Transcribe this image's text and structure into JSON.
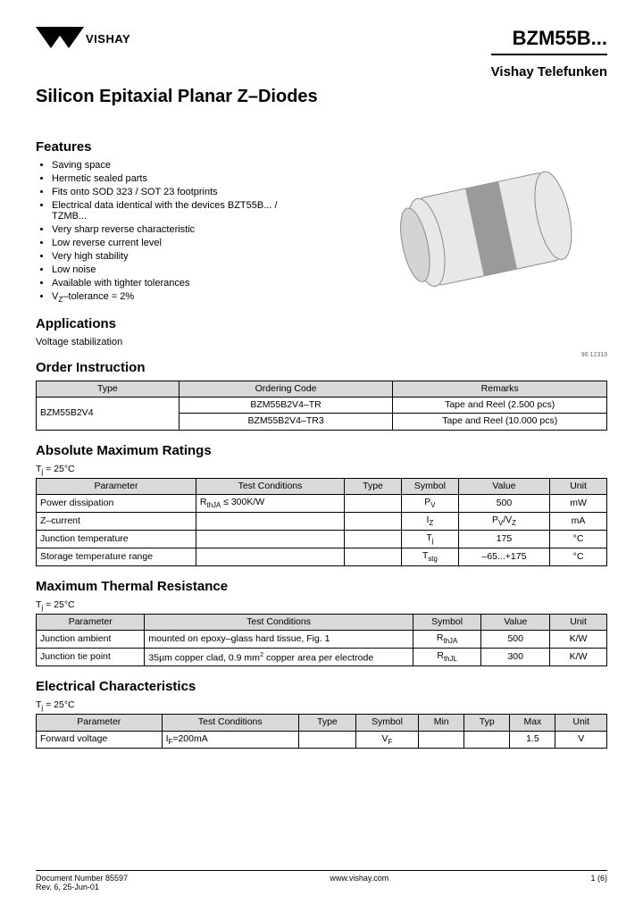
{
  "header": {
    "logo_text": "VISHAY",
    "part_number": "BZM55B...",
    "sub_brand": "Vishay Telefunken"
  },
  "title": "Silicon Epitaxial Planar Z–Diodes",
  "features": {
    "heading": "Features",
    "items": [
      "Saving space",
      "Hermetic sealed parts",
      "Fits onto SOD 323 / SOT 23 footprints",
      "Electrical data identical with the devices BZT55B... / TZMB...",
      "Very sharp reverse characteristic",
      "Low reverse current level",
      "Very high stability",
      "Low noise",
      "Available with tighter tolerances",
      "V_Z–tolerance = 2%"
    ]
  },
  "applications": {
    "heading": "Applications",
    "text": "Voltage stabilization"
  },
  "order": {
    "heading": "Order Instruction",
    "columns": [
      "Type",
      "Ordering Code",
      "Remarks"
    ],
    "type_cell": "BZM55B2V4",
    "rows": [
      {
        "code": "BZM55B2V4–TR",
        "remarks": "Tape and Reel (2.500 pcs)"
      },
      {
        "code": "BZM55B2V4–TR3",
        "remarks": "Tape and Reel (10.000 pcs)"
      }
    ],
    "col_widths": [
      "25%",
      "37.5%",
      "37.5%"
    ]
  },
  "abs_max": {
    "heading": "Absolute Maximum Ratings",
    "condition": "T_j = 25°C",
    "columns": [
      "Parameter",
      "Test Conditions",
      "Type",
      "Symbol",
      "Value",
      "Unit"
    ],
    "rows": [
      {
        "param": "Power dissipation",
        "cond": "R_thJA ≤ 300K/W",
        "type": "",
        "sym": "P_V",
        "val": "500",
        "unit": "mW"
      },
      {
        "param": "Z–current",
        "cond": "",
        "type": "",
        "sym": "I_Z",
        "val": "P_V/V_Z",
        "unit": "mA"
      },
      {
        "param": "Junction temperature",
        "cond": "",
        "type": "",
        "sym": "T_j",
        "val": "175",
        "unit": "°C"
      },
      {
        "param": "Storage temperature range",
        "cond": "",
        "type": "",
        "sym": "T_stg",
        "val": "–65...+175",
        "unit": "°C"
      }
    ],
    "col_widths": [
      "28%",
      "26%",
      "10%",
      "10%",
      "16%",
      "10%"
    ]
  },
  "thermal": {
    "heading": "Maximum Thermal Resistance",
    "condition": "T_j = 25°C",
    "columns": [
      "Parameter",
      "Test Conditions",
      "Symbol",
      "Value",
      "Unit"
    ],
    "rows": [
      {
        "param": "Junction ambient",
        "cond": "mounted on epoxy–glass hard tissue, Fig. 1",
        "sym": "R_thJA",
        "val": "500",
        "unit": "K/W"
      },
      {
        "param": "Junction tie point",
        "cond": "35µm copper clad, 0.9 mm² copper area per electrode",
        "sym": "R_thJL",
        "val": "300",
        "unit": "K/W"
      }
    ],
    "col_widths": [
      "19%",
      "47%",
      "12%",
      "12%",
      "10%"
    ]
  },
  "elec": {
    "heading": "Electrical Characteristics",
    "condition": "T_j = 25°C",
    "columns": [
      "Parameter",
      "Test Conditions",
      "Type",
      "Symbol",
      "Min",
      "Typ",
      "Max",
      "Unit"
    ],
    "rows": [
      {
        "param": "Forward voltage",
        "cond": "I_F=200mA",
        "type": "",
        "sym": "V_F",
        "min": "",
        "typ": "",
        "max": "1.5",
        "unit": "V"
      }
    ],
    "col_widths": [
      "22%",
      "24%",
      "10%",
      "11%",
      "8%",
      "8%",
      "8%",
      "9%"
    ]
  },
  "footer": {
    "doc": "Document Number 85597",
    "rev": "Rev. 6, 25-Jun-01",
    "url": "www.vishay.com",
    "page": "1 (6)"
  },
  "drawing": {
    "caption": "96 12313",
    "body_fill": "#e8e8e8",
    "body_stroke": "#8a8a8a",
    "band_fill": "#9a9a9a",
    "ellipse_fill": "#d4d4d4"
  }
}
